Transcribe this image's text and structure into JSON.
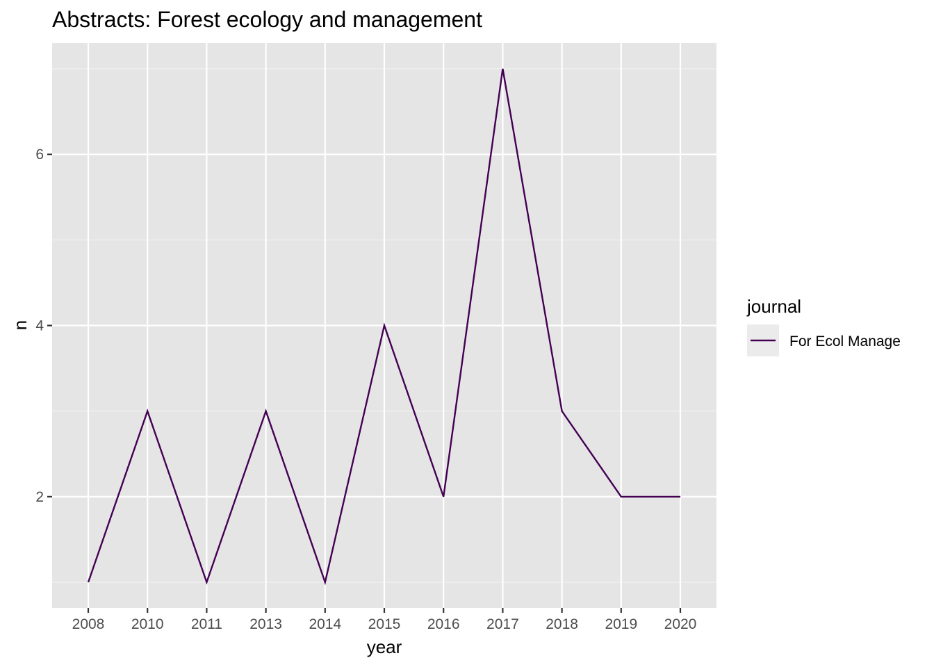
{
  "chart_data": {
    "type": "line",
    "title": "Abstracts: Forest ecology and management",
    "xlabel": "year",
    "ylabel": "n",
    "categories": [
      "2008",
      "2010",
      "2011",
      "2013",
      "2014",
      "2015",
      "2016",
      "2017",
      "2018",
      "2019",
      "2020"
    ],
    "series": [
      {
        "name": "For Ecol Manage",
        "values": [
          1,
          3,
          1,
          3,
          1,
          4,
          2,
          7,
          3,
          2,
          2
        ],
        "color": "#440154"
      }
    ],
    "ylim": [
      0.7,
      7.3
    ],
    "yticks": [
      2,
      4,
      6
    ],
    "grid": true,
    "legend": {
      "title": "journal",
      "position": "right"
    }
  }
}
